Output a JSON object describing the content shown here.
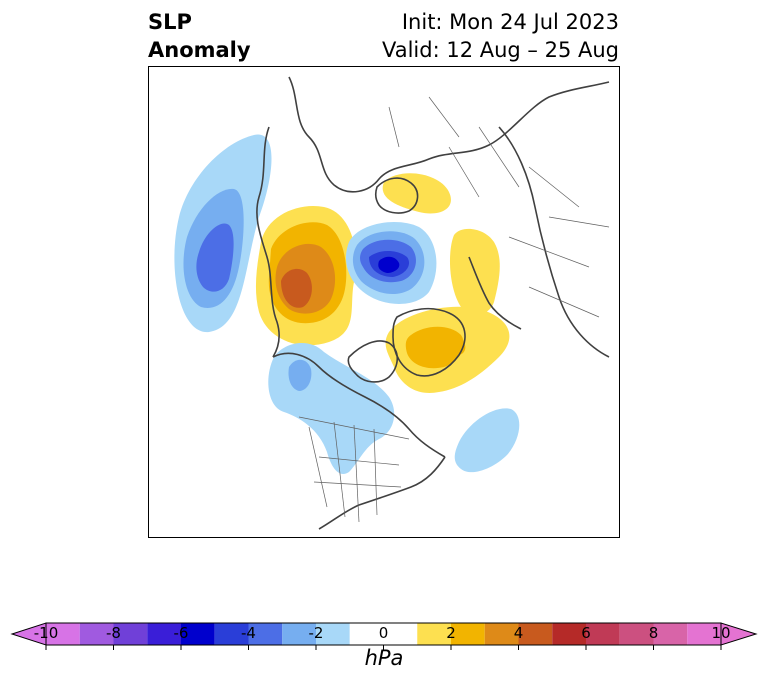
{
  "header": {
    "title_line1": "SLP",
    "title_line2": "Anomaly",
    "init_label": "Init: Mon 24 Jul 2023",
    "valid_label": "Valid: 12 Aug – 25 Aug"
  },
  "colorbar": {
    "unit": "hPa",
    "tick_labels": [
      "-10",
      "-8",
      "-6",
      "-4",
      "-2",
      "0",
      "2",
      "4",
      "6",
      "8",
      "10"
    ],
    "bins": [
      {
        "lo": -10,
        "hi": -9,
        "color": "#d773e6"
      },
      {
        "lo": -9,
        "hi": -8,
        "color": "#a05ae0"
      },
      {
        "lo": -8,
        "hi": -7,
        "color": "#7040d8"
      },
      {
        "lo": -7,
        "hi": -6,
        "color": "#3a1ed8"
      },
      {
        "lo": -6,
        "hi": -5,
        "color": "#0000cd"
      },
      {
        "lo": -5,
        "hi": -4,
        "color": "#2a3ed8"
      },
      {
        "lo": -4,
        "hi": -3,
        "color": "#4c6ee6"
      },
      {
        "lo": -3,
        "hi": -2,
        "color": "#76aef0"
      },
      {
        "lo": -2,
        "hi": -1,
        "color": "#a8d8f8"
      },
      {
        "lo": -1,
        "hi": 1,
        "color": "#ffffff"
      },
      {
        "lo": 1,
        "hi": 2,
        "color": "#fde050"
      },
      {
        "lo": 2,
        "hi": 3,
        "color": "#f2b400"
      },
      {
        "lo": 3,
        "hi": 4,
        "color": "#de8a18"
      },
      {
        "lo": 4,
        "hi": 5,
        "color": "#c85a1e"
      },
      {
        "lo": 5,
        "hi": 6,
        "color": "#b52a28"
      },
      {
        "lo": 6,
        "hi": 7,
        "color": "#c03a56"
      },
      {
        "lo": 7,
        "hi": 8,
        "color": "#cc5080"
      },
      {
        "lo": 8,
        "hi": 9,
        "color": "#d864a8"
      },
      {
        "lo": 9,
        "hi": 10,
        "color": "#e473d2"
      }
    ],
    "extend_low_color": "#d773e6",
    "extend_high_color": "#e473d2"
  }
}
